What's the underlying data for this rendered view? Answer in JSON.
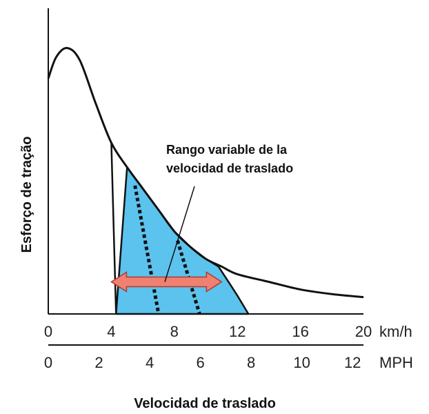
{
  "chart_data": {
    "type": "area",
    "ylabel": "Esforço de tração",
    "xlabel": "Velocidad de traslado",
    "annotation": [
      "Rango variable de la",
      "velocidad de traslado"
    ],
    "x_kmh": {
      "unit": "km/h",
      "ticks": [
        0,
        4,
        8,
        12,
        16,
        20
      ],
      "range": [
        0,
        20
      ]
    },
    "x_mph": {
      "unit": "MPH",
      "ticks": [
        0,
        2,
        4,
        6,
        8,
        10,
        12
      ],
      "range": [
        0,
        12.43
      ]
    },
    "y_range": [
      0,
      100
    ],
    "tractive_curve": {
      "x_kmh": [
        0,
        0.5,
        1.2,
        2,
        3,
        4,
        5,
        6,
        7,
        8,
        9,
        10,
        11,
        12,
        14,
        16,
        18,
        20
      ],
      "y": [
        77,
        84,
        87,
        83,
        69,
        56,
        48,
        41,
        34,
        27,
        22,
        18,
        15.5,
        13,
        10.5,
        8,
        6.5,
        5.5
      ]
    },
    "shaded_region": {
      "color": "#5bc3ee",
      "x_kmh": [
        4,
        4.3,
        5,
        6,
        7,
        8,
        9,
        10,
        10.8,
        11.5,
        12,
        12.7,
        4.3
      ],
      "y": [
        56,
        0,
        48,
        41,
        34,
        27,
        22,
        18,
        15.5,
        10,
        6,
        0,
        0
      ]
    },
    "dotted_lines": [
      {
        "x_kmh": [
          5.5,
          7.0
        ],
        "y": [
          42,
          0
        ]
      },
      {
        "x_kmh": [
          8.2,
          9.6
        ],
        "y": [
          24,
          0
        ]
      }
    ],
    "range_arrow": {
      "color": "#f08070",
      "x_kmh": [
        4,
        11
      ],
      "y": 10.5
    }
  }
}
